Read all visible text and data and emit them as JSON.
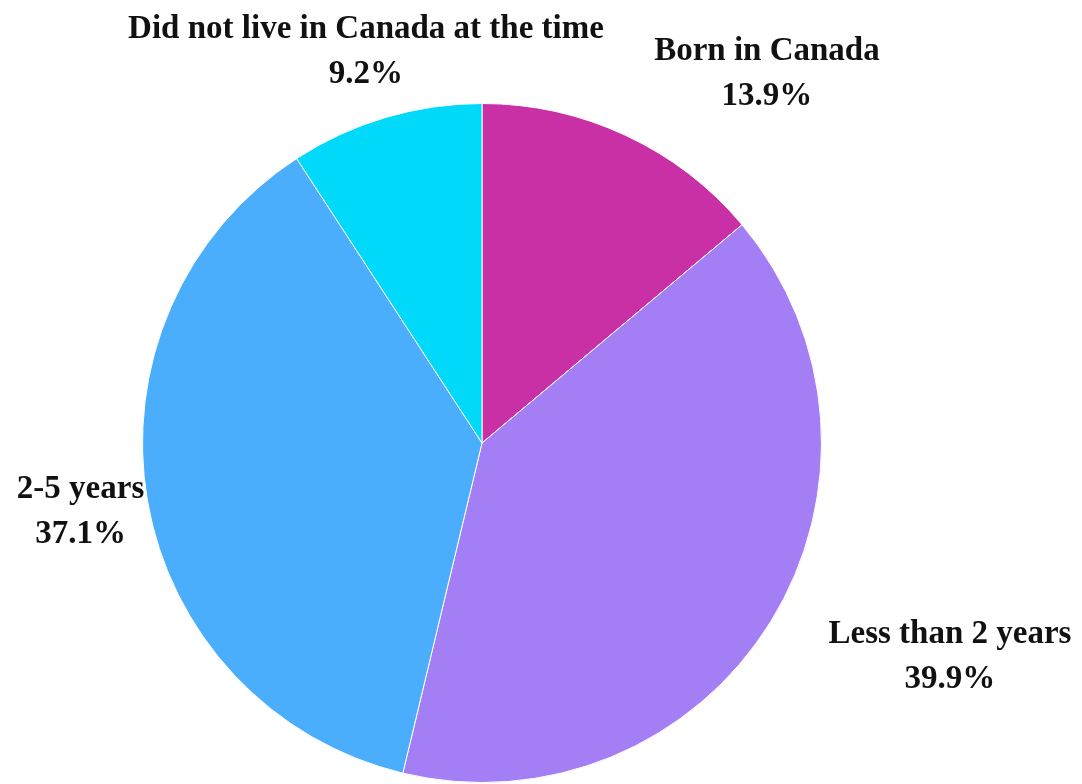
{
  "chart_data": {
    "type": "pie",
    "categories": [
      "Born in Canada",
      "Less than 2 years",
      "2-5 years",
      "Did not live in Canada at the time"
    ],
    "values": [
      13.9,
      39.9,
      37.1,
      9.2
    ],
    "value_labels": [
      "13.9%",
      "39.9%",
      "37.1%",
      "9.2%"
    ],
    "colors": [
      "#c930a5",
      "#a37ef5",
      "#4aaefc",
      "#00d9fa"
    ]
  }
}
